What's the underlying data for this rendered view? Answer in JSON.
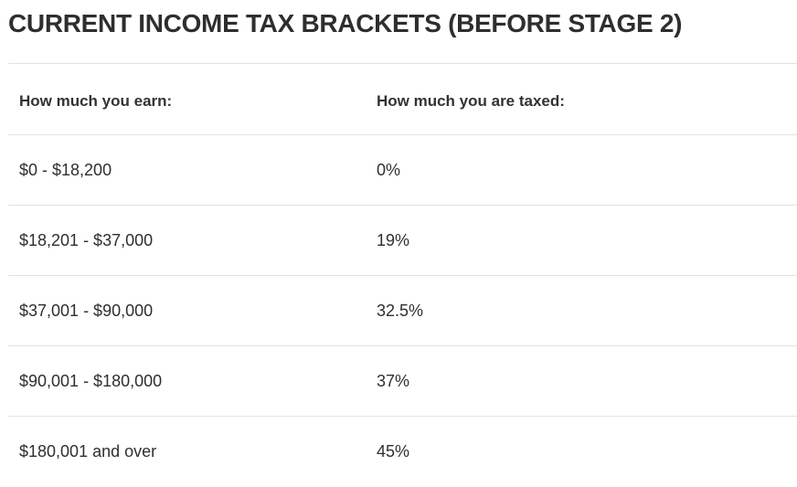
{
  "title": "CURRENT INCOME TAX BRACKETS (BEFORE STAGE 2)",
  "table": {
    "headers": [
      "How much you earn:",
      "How much you are taxed:"
    ],
    "rows": [
      [
        "$0 - $18,200",
        "0%"
      ],
      [
        "$18,201 - $37,000",
        "19%"
      ],
      [
        "$37,001 - $90,000",
        "32.5%"
      ],
      [
        "$90,001 - $180,000",
        "37%"
      ],
      [
        "$180,001 and over",
        "45%"
      ]
    ]
  }
}
